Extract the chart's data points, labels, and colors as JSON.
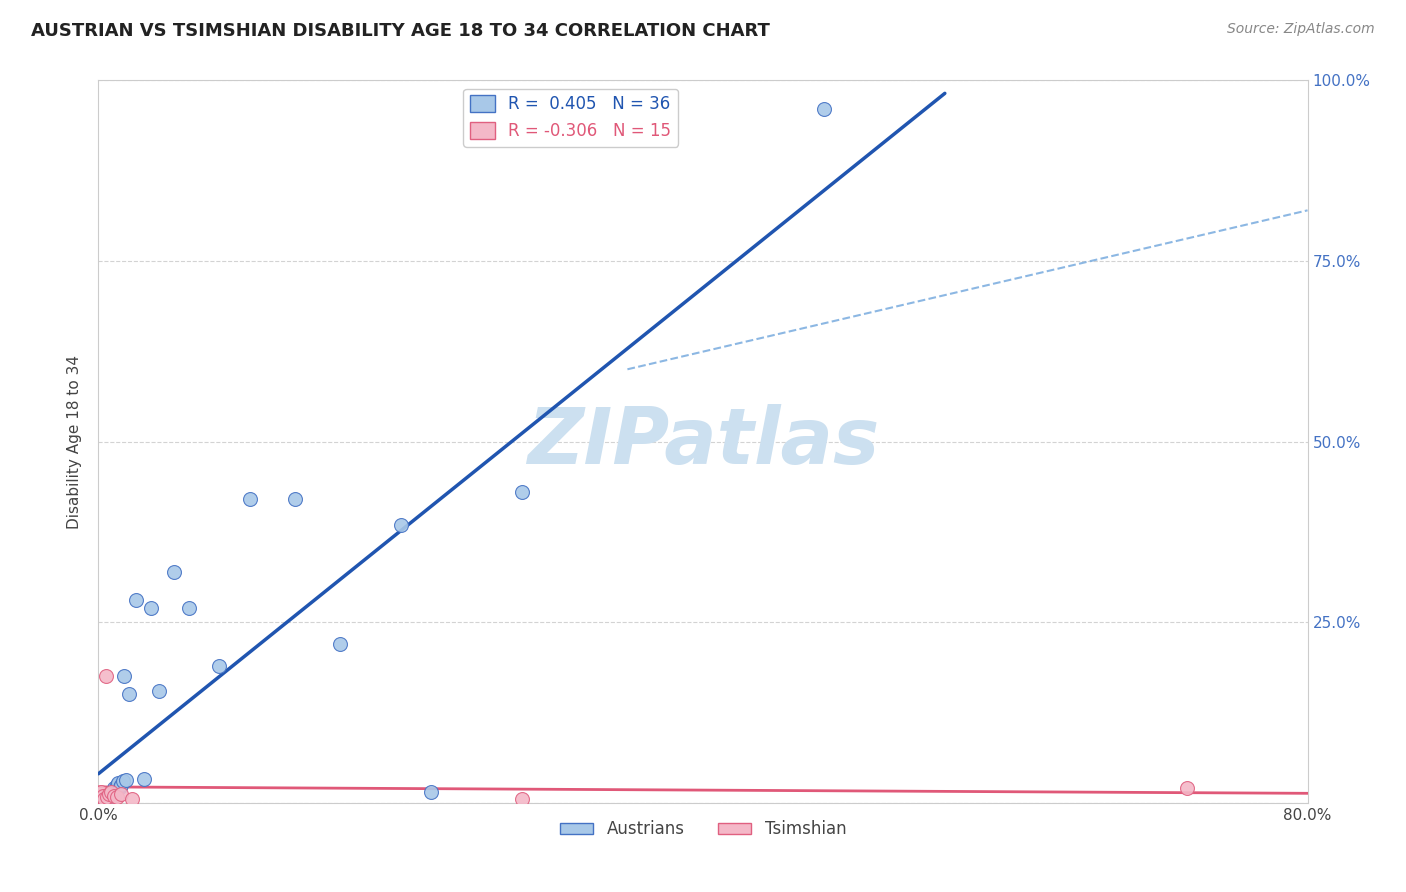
{
  "title": "AUSTRIAN VS TSIMSHIAN DISABILITY AGE 18 TO 34 CORRELATION CHART",
  "source": "Source: ZipAtlas.com",
  "legend_austrians": "Austrians",
  "legend_tsimshian": "Tsimshian",
  "r_austrians": 0.405,
  "n_austrians": 36,
  "r_tsimshian": -0.306,
  "n_tsimshian": 15,
  "austrians_x": [
    0.002,
    0.003,
    0.004,
    0.004,
    0.005,
    0.005,
    0.006,
    0.007,
    0.007,
    0.008,
    0.009,
    0.01,
    0.01,
    0.011,
    0.012,
    0.013,
    0.014,
    0.015,
    0.016,
    0.017,
    0.018,
    0.02,
    0.025,
    0.03,
    0.035,
    0.04,
    0.05,
    0.06,
    0.08,
    0.1,
    0.13,
    0.16,
    0.2,
    0.22,
    0.28,
    0.48
  ],
  "austrians_y": [
    0.005,
    0.003,
    0.008,
    0.005,
    0.01,
    0.006,
    0.008,
    0.01,
    0.005,
    0.008,
    0.015,
    0.012,
    0.02,
    0.018,
    0.025,
    0.028,
    0.022,
    0.025,
    0.03,
    0.175,
    0.032,
    0.15,
    0.28,
    0.033,
    0.27,
    0.155,
    0.32,
    0.27,
    0.19,
    0.42,
    0.42,
    0.22,
    0.385,
    0.015,
    0.43,
    0.96
  ],
  "tsimshian_x": [
    0.001,
    0.002,
    0.003,
    0.003,
    0.004,
    0.005,
    0.006,
    0.007,
    0.008,
    0.01,
    0.012,
    0.015,
    0.022,
    0.28,
    0.72
  ],
  "tsimshian_y": [
    0.01,
    0.015,
    0.008,
    0.01,
    0.005,
    0.175,
    0.008,
    0.012,
    0.015,
    0.01,
    0.008,
    0.012,
    0.005,
    0.005,
    0.02
  ],
  "color_austrians_fill": "#a8c8e8",
  "color_austrians_edge": "#4472c4",
  "color_austrians_line": "#2055b0",
  "color_tsimshian_fill": "#f4b8c8",
  "color_tsimshian_edge": "#e06080",
  "color_tsimshian_line": "#e05878",
  "color_dashed_line": "#80b0e0",
  "marker_size": 100,
  "xlim": [
    0.0,
    0.8
  ],
  "ylim": [
    0.0,
    1.0
  ],
  "grid_color": "#c8c8c8",
  "background_color": "#ffffff",
  "watermark_text": "ZIPatlas",
  "watermark_color": "#cce0f0",
  "right_tick_color": "#4472c4",
  "title_fontsize": 13,
  "source_fontsize": 10,
  "tick_fontsize": 11,
  "ylabel_fontsize": 11
}
